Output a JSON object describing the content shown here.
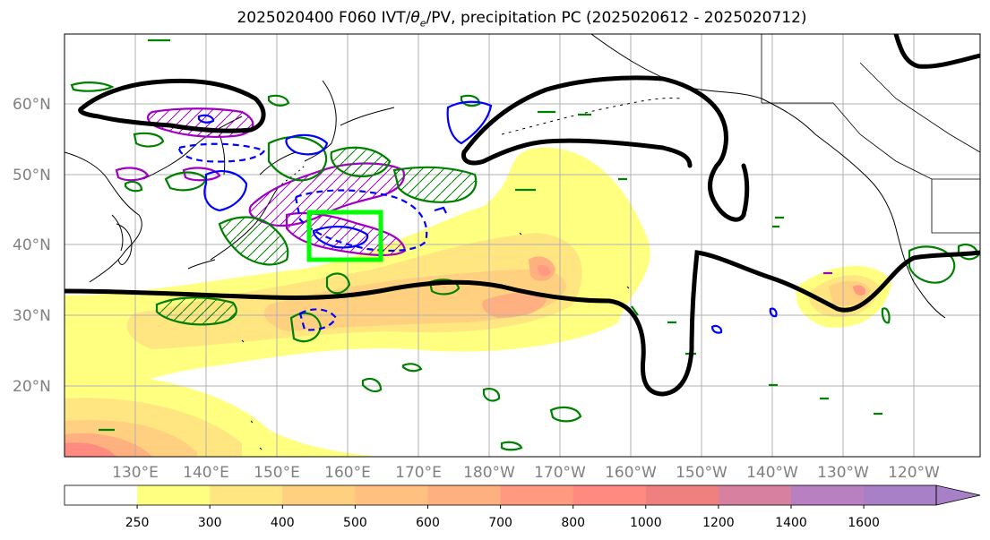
{
  "title": {
    "prefix": "2025020400 F060 IVT/",
    "theta": "θ",
    "theta_sub": "e",
    "suffix": "/PV, precipitation PC (2025020612 - 2025020712)"
  },
  "lat_labels": [
    "60°N",
    "50°N",
    "40°N",
    "30°N",
    "20°N"
  ],
  "lon_labels": [
    "130°E",
    "140°E",
    "150°E",
    "160°E",
    "170°E",
    "180°W",
    "170°W",
    "160°W",
    "150°W",
    "140°W",
    "130°W",
    "120°W"
  ],
  "colorbar": {
    "ticks": [
      "250",
      "300",
      "400",
      "500",
      "600",
      "700",
      "800",
      "1000",
      "1200",
      "1400",
      "1600"
    ],
    "colors": [
      "#ffffff",
      "#ffff80",
      "#ffe680",
      "#ffd080",
      "#ffc080",
      "#ffb080",
      "#ff9a80",
      "#ff8a80",
      "#f08080",
      "#d880a0",
      "#b880c0",
      "#a880c8"
    ]
  },
  "colors": {
    "ivt_contour": "#000000",
    "theta_e": "#008000",
    "pv": "#a000c0",
    "precip_pc": "#0000ff",
    "target_box": "#00ff00"
  }
}
